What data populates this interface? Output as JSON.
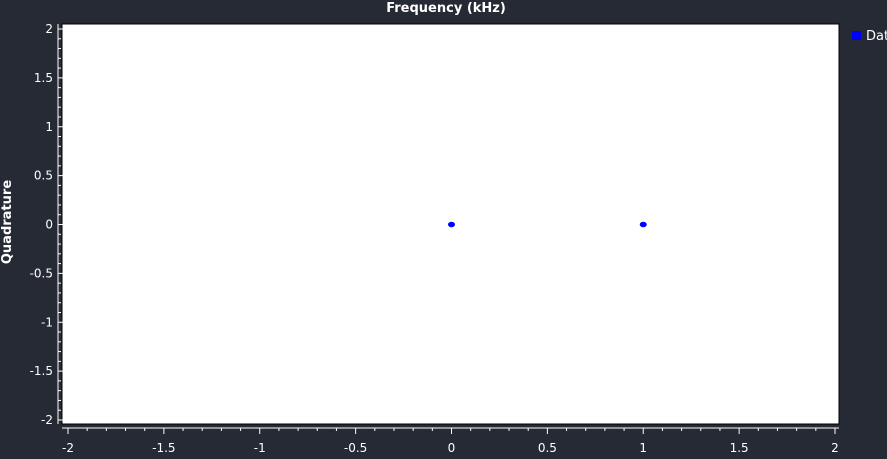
{
  "chart_data": {
    "type": "scatter",
    "title": "Frequency (kHz)",
    "xlabel": "",
    "ylabel": "Quadrature",
    "xlim": [
      -2,
      2
    ],
    "ylim": [
      -2,
      2
    ],
    "xticks": [
      "-2",
      "-1.5",
      "-1",
      "-0.5",
      "0",
      "0.5",
      "1",
      "1.5",
      "2"
    ],
    "yticks": [
      "2",
      "1.5",
      "1",
      "0.5",
      "0",
      "-0.5",
      "-1",
      "-1.5",
      "-2"
    ],
    "grid": false,
    "legend_position": "right",
    "series": [
      {
        "name": "Dat",
        "color": "#0000ff",
        "points": [
          [
            0,
            0
          ],
          [
            1,
            0
          ]
        ]
      }
    ]
  }
}
